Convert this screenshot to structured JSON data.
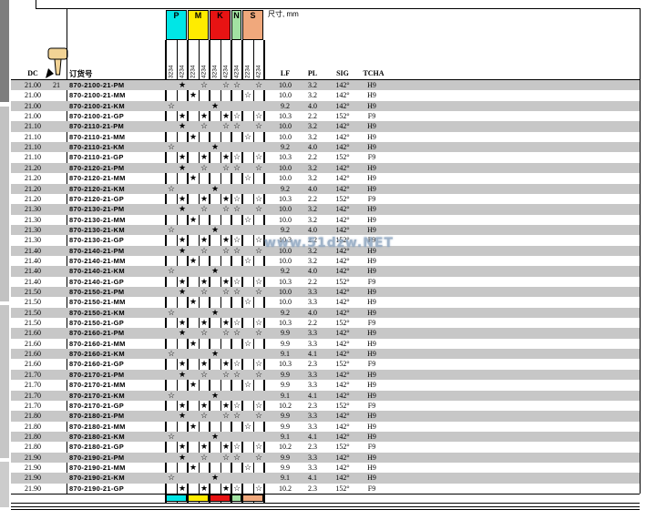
{
  "page": {
    "dim_note": "尺寸, mm",
    "watermark": "www.51dzw.NET"
  },
  "header": {
    "columns": {
      "dc": "DC",
      "order": "订货号",
      "lf": "LF",
      "pl": "PL",
      "sig": "SIG",
      "tcha": "TCHA"
    },
    "material_groups": [
      {
        "code": "P",
        "color": "#00e6e6",
        "span": 2
      },
      {
        "code": "M",
        "color": "#ffec00",
        "span": 2
      },
      {
        "code": "K",
        "color": "#e81313",
        "span": 2
      },
      {
        "code": "N",
        "color": "#a2e2a2",
        "span": 1
      },
      {
        "code": "S",
        "color": "#f0a87c",
        "span": 2
      }
    ],
    "grade_cols": [
      "3234",
      "4234",
      "2234",
      "4234",
      "3234",
      "4234",
      "4234",
      "2234",
      "4234"
    ]
  },
  "legend": {
    "first_choice": "★",
    "alternative": "☆"
  },
  "star_patterns": {
    "PM": [
      "",
      "f",
      "",
      "o",
      "",
      "o",
      "o",
      "",
      "o"
    ],
    "MM": [
      "",
      "",
      "f",
      "",
      "",
      "",
      "",
      "o",
      ""
    ],
    "KM": [
      "o",
      "",
      "",
      "",
      "f",
      "",
      "",
      "",
      ""
    ],
    "GP": [
      "",
      "f",
      "",
      "f",
      "",
      "f",
      "o",
      "",
      "o"
    ]
  },
  "colors": {
    "stripe": "#c7c7c7",
    "margin_dark": "#7e7e7e",
    "margin_light": "#c2c2c2"
  },
  "rows": [
    {
      "dc": "21.00",
      "c2": "21",
      "order": "870-2100-21-PM",
      "g": "PM",
      "lf": "10.0",
      "pl": "3.2",
      "sig": "142°",
      "tcha": "H9"
    },
    {
      "dc": "21.00",
      "order": "870-2100-21-MM",
      "g": "MM",
      "lf": "10.0",
      "pl": "3.2",
      "sig": "142°",
      "tcha": "H9"
    },
    {
      "dc": "21.00",
      "order": "870-2100-21-KM",
      "g": "KM",
      "lf": "9.2",
      "pl": "4.0",
      "sig": "142°",
      "tcha": "H9"
    },
    {
      "dc": "21.00",
      "order": "870-2100-21-GP",
      "g": "GP",
      "lf": "10.3",
      "pl": "2.2",
      "sig": "152°",
      "tcha": "F9"
    },
    {
      "dc": "21.10",
      "order": "870-2110-21-PM",
      "g": "PM",
      "lf": "10.0",
      "pl": "3.2",
      "sig": "142°",
      "tcha": "H9"
    },
    {
      "dc": "21.10",
      "order": "870-2110-21-MM",
      "g": "MM",
      "lf": "10.0",
      "pl": "3.2",
      "sig": "142°",
      "tcha": "H9"
    },
    {
      "dc": "21.10",
      "order": "870-2110-21-KM",
      "g": "KM",
      "lf": "9.2",
      "pl": "4.0",
      "sig": "142°",
      "tcha": "H9"
    },
    {
      "dc": "21.10",
      "order": "870-2110-21-GP",
      "g": "GP",
      "lf": "10.3",
      "pl": "2.2",
      "sig": "152°",
      "tcha": "F9"
    },
    {
      "dc": "21.20",
      "order": "870-2120-21-PM",
      "g": "PM",
      "lf": "10.0",
      "pl": "3.2",
      "sig": "142°",
      "tcha": "H9"
    },
    {
      "dc": "21.20",
      "order": "870-2120-21-MM",
      "g": "MM",
      "lf": "10.0",
      "pl": "3.2",
      "sig": "142°",
      "tcha": "H9"
    },
    {
      "dc": "21.20",
      "order": "870-2120-21-KM",
      "g": "KM",
      "lf": "9.2",
      "pl": "4.0",
      "sig": "142°",
      "tcha": "H9"
    },
    {
      "dc": "21.20",
      "order": "870-2120-21-GP",
      "g": "GP",
      "lf": "10.3",
      "pl": "2.2",
      "sig": "152°",
      "tcha": "F9"
    },
    {
      "dc": "21.30",
      "order": "870-2130-21-PM",
      "g": "PM",
      "lf": "10.0",
      "pl": "3.2",
      "sig": "142°",
      "tcha": "H9"
    },
    {
      "dc": "21.30",
      "order": "870-2130-21-MM",
      "g": "MM",
      "lf": "10.0",
      "pl": "3.2",
      "sig": "142°",
      "tcha": "H9"
    },
    {
      "dc": "21.30",
      "order": "870-2130-21-KM",
      "g": "KM",
      "lf": "9.2",
      "pl": "4.0",
      "sig": "142°",
      "tcha": "H9"
    },
    {
      "dc": "21.30",
      "order": "870-2130-21-GP",
      "g": "GP",
      "lf": "10.3",
      "pl": "2.2",
      "sig": "152°",
      "tcha": "F9"
    },
    {
      "dc": "21.40",
      "order": "870-2140-21-PM",
      "g": "PM",
      "lf": "10.0",
      "pl": "3.2",
      "sig": "142°",
      "tcha": "H9"
    },
    {
      "dc": "21.40",
      "order": "870-2140-21-MM",
      "g": "MM",
      "lf": "10.0",
      "pl": "3.2",
      "sig": "142°",
      "tcha": "H9"
    },
    {
      "dc": "21.40",
      "order": "870-2140-21-KM",
      "g": "KM",
      "lf": "9.2",
      "pl": "4.0",
      "sig": "142°",
      "tcha": "H9"
    },
    {
      "dc": "21.40",
      "order": "870-2140-21-GP",
      "g": "GP",
      "lf": "10.3",
      "pl": "2.2",
      "sig": "152°",
      "tcha": "F9"
    },
    {
      "dc": "21.50",
      "order": "870-2150-21-PM",
      "g": "PM",
      "lf": "10.0",
      "pl": "3.3",
      "sig": "142°",
      "tcha": "H9"
    },
    {
      "dc": "21.50",
      "order": "870-2150-21-MM",
      "g": "MM",
      "lf": "10.0",
      "pl": "3.3",
      "sig": "142°",
      "tcha": "H9"
    },
    {
      "dc": "21.50",
      "order": "870-2150-21-KM",
      "g": "KM",
      "lf": "9.2",
      "pl": "4.0",
      "sig": "142°",
      "tcha": "H9"
    },
    {
      "dc": "21.50",
      "order": "870-2150-21-GP",
      "g": "GP",
      "lf": "10.3",
      "pl": "2.2",
      "sig": "152°",
      "tcha": "F9"
    },
    {
      "dc": "21.60",
      "order": "870-2160-21-PM",
      "g": "PM",
      "lf": "9.9",
      "pl": "3.3",
      "sig": "142°",
      "tcha": "H9"
    },
    {
      "dc": "21.60",
      "order": "870-2160-21-MM",
      "g": "MM",
      "lf": "9.9",
      "pl": "3.3",
      "sig": "142°",
      "tcha": "H9"
    },
    {
      "dc": "21.60",
      "order": "870-2160-21-KM",
      "g": "KM",
      "lf": "9.1",
      "pl": "4.1",
      "sig": "142°",
      "tcha": "H9"
    },
    {
      "dc": "21.60",
      "order": "870-2160-21-GP",
      "g": "GP",
      "lf": "10.3",
      "pl": "2.3",
      "sig": "152°",
      "tcha": "F9"
    },
    {
      "dc": "21.70",
      "order": "870-2170-21-PM",
      "g": "PM",
      "lf": "9.9",
      "pl": "3.3",
      "sig": "142°",
      "tcha": "H9"
    },
    {
      "dc": "21.70",
      "order": "870-2170-21-MM",
      "g": "MM",
      "lf": "9.9",
      "pl": "3.3",
      "sig": "142°",
      "tcha": "H9"
    },
    {
      "dc": "21.70",
      "order": "870-2170-21-KM",
      "g": "KM",
      "lf": "9.1",
      "pl": "4.1",
      "sig": "142°",
      "tcha": "H9"
    },
    {
      "dc": "21.70",
      "order": "870-2170-21-GP",
      "g": "GP",
      "lf": "10.2",
      "pl": "2.3",
      "sig": "152°",
      "tcha": "F9"
    },
    {
      "dc": "21.80",
      "order": "870-2180-21-PM",
      "g": "PM",
      "lf": "9.9",
      "pl": "3.3",
      "sig": "142°",
      "tcha": "H9"
    },
    {
      "dc": "21.80",
      "order": "870-2180-21-MM",
      "g": "MM",
      "lf": "9.9",
      "pl": "3.3",
      "sig": "142°",
      "tcha": "H9"
    },
    {
      "dc": "21.80",
      "order": "870-2180-21-KM",
      "g": "KM",
      "lf": "9.1",
      "pl": "4.1",
      "sig": "142°",
      "tcha": "H9"
    },
    {
      "dc": "21.80",
      "order": "870-2180-21-GP",
      "g": "GP",
      "lf": "10.2",
      "pl": "2.3",
      "sig": "152°",
      "tcha": "F9"
    },
    {
      "dc": "21.90",
      "order": "870-2190-21-PM",
      "g": "PM",
      "lf": "9.9",
      "pl": "3.3",
      "sig": "142°",
      "tcha": "H9"
    },
    {
      "dc": "21.90",
      "order": "870-2190-21-MM",
      "g": "MM",
      "lf": "9.9",
      "pl": "3.3",
      "sig": "142°",
      "tcha": "H9"
    },
    {
      "dc": "21.90",
      "order": "870-2190-21-KM",
      "g": "KM",
      "lf": "9.1",
      "pl": "4.1",
      "sig": "142°",
      "tcha": "H9"
    },
    {
      "dc": "21.90",
      "order": "870-2190-21-GP",
      "g": "GP",
      "lf": "10.2",
      "pl": "2.3",
      "sig": "152°",
      "tcha": "F9"
    }
  ]
}
